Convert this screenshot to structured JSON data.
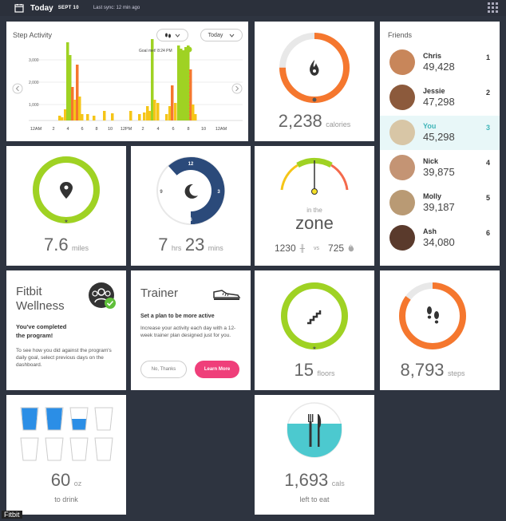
{
  "header": {
    "today": "Today",
    "date": "SEPT 10",
    "sync": "Last sync: 12 min ago"
  },
  "step_activity": {
    "title": "Step Activity",
    "range": "Today",
    "goal_note": "Goal met! 8:24 PM",
    "y_ticks": [
      "3,000",
      "2,000",
      "1,000"
    ],
    "x_ticks": [
      "12AM",
      "2",
      "4",
      "6",
      "8",
      "10",
      "12PM",
      "2",
      "4",
      "6",
      "8",
      "10",
      "12AM"
    ]
  },
  "calories": {
    "value": "2,238",
    "unit": "calories",
    "level": 0.75
  },
  "distance": {
    "value": "7.6",
    "unit": "miles",
    "level": 1.0
  },
  "sleep": {
    "hours": "7",
    "hours_unit": "hrs",
    "mins": "23",
    "mins_unit": "mins",
    "clock": [
      "12",
      "3",
      "6",
      "9"
    ]
  },
  "zone": {
    "label": "in the",
    "zone": "zone",
    "left_value": "1230",
    "vs": "vs",
    "right_value": "725"
  },
  "friends": {
    "title": "Friends",
    "list": [
      {
        "name": "Chris",
        "steps": "49,428",
        "rank": "1",
        "color": "#c8865a"
      },
      {
        "name": "Jessie",
        "steps": "47,298",
        "rank": "2",
        "color": "#8c5a3c"
      },
      {
        "name": "You",
        "steps": "45,298",
        "rank": "3",
        "color": "#d8c6a6"
      },
      {
        "name": "Nick",
        "steps": "39,875",
        "rank": "4",
        "color": "#c49474"
      },
      {
        "name": "Molly",
        "steps": "39,187",
        "rank": "5",
        "color": "#b99a74"
      },
      {
        "name": "Ash",
        "steps": "34,080",
        "rank": "6",
        "color": "#5a3a2c"
      }
    ]
  },
  "wellness": {
    "title_line1": "Fitbit",
    "title_line2": "Wellness",
    "headline_line1": "You've completed",
    "headline_line2": "the program!",
    "body": "To see how you did against the program's daily goal, select previous days on the dashboard."
  },
  "trainer": {
    "title": "Trainer",
    "headline": "Set a plan to be more active",
    "body": "Increase your activity each day with a 12-week trainer plan designed just for you.",
    "no_label": "No, Thanks",
    "more_label": "Learn More"
  },
  "floors": {
    "value": "15",
    "unit": "floors",
    "level": 1.0
  },
  "steps": {
    "value": "8,793",
    "unit": "steps",
    "level": 0.85
  },
  "water": {
    "value": "60",
    "unit": "oz",
    "sub": "to drink",
    "filled_glasses": 2.5,
    "total_glasses": 8
  },
  "food": {
    "value": "1,693",
    "unit": "cals",
    "sub": "left to eat"
  },
  "brand": "Fitbit",
  "colors": {
    "orange": "#f5772e",
    "green": "#9fd223",
    "navy": "#2b4a7a",
    "teal": "#4cc9cf",
    "blue": "#2b8ee6",
    "pink": "#ef3f7a"
  }
}
